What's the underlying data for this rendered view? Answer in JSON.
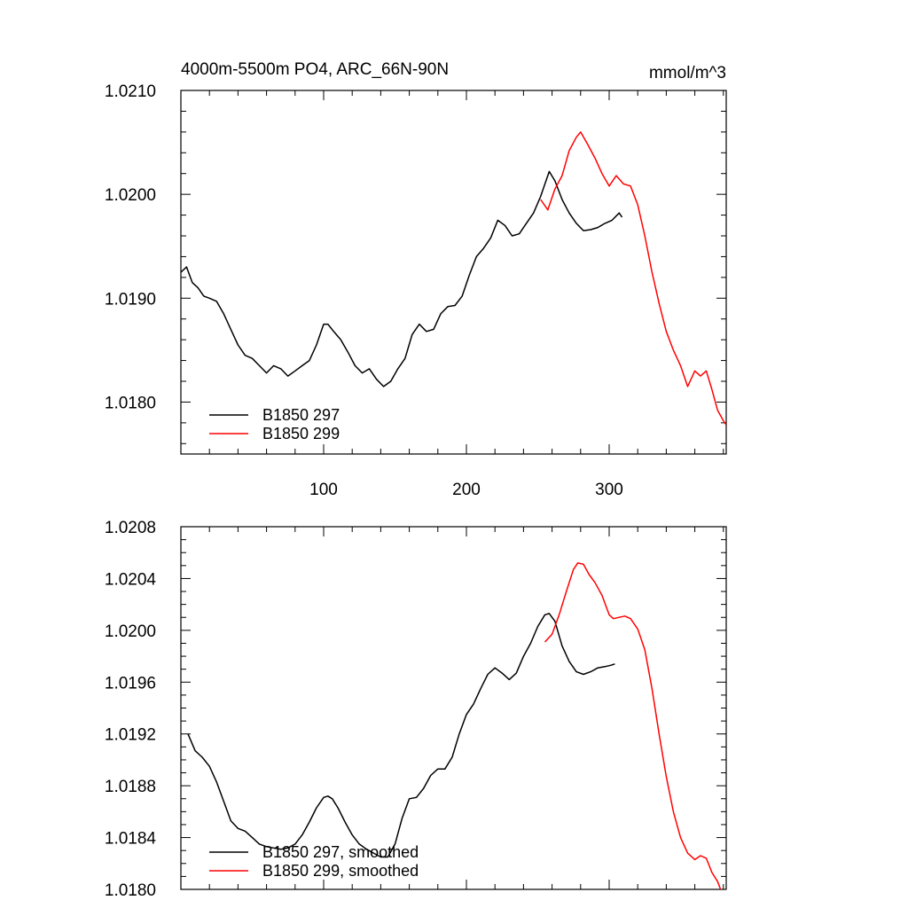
{
  "chart_data": [
    {
      "type": "line",
      "title": "4000m-5500m PO4, ARC_66N-90N",
      "units": "mmol/m^3",
      "xlabel": "",
      "ylabel": "",
      "xlim": [
        0,
        382
      ],
      "ylim": [
        1.0175,
        1.021
      ],
      "xticks": [
        100,
        200,
        300
      ],
      "xtick_labels": [
        "100",
        "200",
        "300"
      ],
      "yticks": [
        1.018,
        1.019,
        1.02,
        1.021
      ],
      "ytick_labels": [
        "1.0180",
        "1.0190",
        "1.0200",
        "1.0210"
      ],
      "legend": "bottom-left",
      "series": [
        {
          "name": "B1850 297",
          "color": "#000000",
          "x": [
            0,
            4,
            8,
            12,
            16,
            20,
            25,
            30,
            35,
            40,
            45,
            50,
            55,
            60,
            65,
            70,
            75,
            80,
            85,
            90,
            95,
            100,
            103,
            107,
            112,
            117,
            122,
            127,
            132,
            137,
            142,
            147,
            152,
            157,
            162,
            167,
            172,
            177,
            182,
            187,
            192,
            197,
            202,
            207,
            212,
            217,
            222,
            227,
            232,
            237,
            242,
            247,
            252,
            258,
            262,
            267,
            272,
            277,
            282,
            287,
            292,
            297,
            302,
            307,
            309
          ],
          "y": [
            1.01925,
            1.0193,
            1.01915,
            1.0191,
            1.01902,
            1.019,
            1.01897,
            1.01885,
            1.0187,
            1.01855,
            1.01845,
            1.01842,
            1.01835,
            1.01828,
            1.01835,
            1.01832,
            1.01825,
            1.0183,
            1.01835,
            1.0184,
            1.01855,
            1.01875,
            1.01875,
            1.01868,
            1.0186,
            1.01848,
            1.01835,
            1.01828,
            1.01832,
            1.01822,
            1.01815,
            1.0182,
            1.01832,
            1.01842,
            1.01865,
            1.01875,
            1.01868,
            1.0187,
            1.01885,
            1.01892,
            1.01893,
            1.01902,
            1.01922,
            1.0194,
            1.01948,
            1.01958,
            1.01975,
            1.0197,
            1.0196,
            1.01962,
            1.01972,
            1.01982,
            1.01998,
            1.02022,
            1.02013,
            1.01995,
            1.01982,
            1.01972,
            1.01965,
            1.01966,
            1.01968,
            1.01972,
            1.01975,
            1.01982,
            1.01978
          ]
        },
        {
          "name": "B1850 299",
          "color": "#ff0000",
          "x": [
            252,
            257,
            262,
            267,
            272,
            277,
            280,
            285,
            290,
            295,
            300,
            305,
            310,
            315,
            320,
            325,
            330,
            335,
            340,
            345,
            350,
            355,
            360,
            364,
            368,
            372,
            376,
            380,
            382
          ],
          "y": [
            1.01995,
            1.01985,
            1.02005,
            1.02018,
            1.02042,
            1.02055,
            1.0206,
            1.02048,
            1.02035,
            1.0202,
            1.02008,
            1.02018,
            1.0201,
            1.02008,
            1.0199,
            1.0196,
            1.01925,
            1.01895,
            1.01868,
            1.0185,
            1.01835,
            1.01815,
            1.0183,
            1.01825,
            1.0183,
            1.01812,
            1.01792,
            1.01782,
            1.01778
          ]
        }
      ]
    },
    {
      "type": "line",
      "title": "",
      "xlabel": "",
      "ylabel": "",
      "xlim": [
        0,
        382
      ],
      "ylim": [
        1.018,
        1.0208
      ],
      "xticks": [
        100,
        200,
        300
      ],
      "yticks": [
        1.018,
        1.0184,
        1.0188,
        1.0192,
        1.0196,
        1.02,
        1.0204,
        1.0208
      ],
      "ytick_labels": [
        "1.0180",
        "1.0184",
        "1.0188",
        "1.0192",
        "1.0196",
        "1.0200",
        "1.0204",
        "1.0208"
      ],
      "legend": "bottom-left",
      "series": [
        {
          "name": "B1850 297, smoothed",
          "color": "#000000",
          "x": [
            5,
            10,
            15,
            20,
            25,
            30,
            35,
            40,
            45,
            50,
            55,
            60,
            65,
            70,
            75,
            80,
            85,
            90,
            95,
            100,
            103,
            106,
            110,
            115,
            120,
            125,
            130,
            135,
            140,
            145,
            150,
            155,
            160,
            165,
            170,
            175,
            180,
            185,
            190,
            195,
            200,
            205,
            210,
            215,
            220,
            225,
            230,
            235,
            240,
            245,
            250,
            255,
            258,
            262,
            267,
            272,
            277,
            282,
            287,
            292,
            297,
            301,
            304
          ],
          "y": [
            1.0192,
            1.01907,
            1.01902,
            1.01895,
            1.01883,
            1.01868,
            1.01853,
            1.01847,
            1.01845,
            1.0184,
            1.01835,
            1.01833,
            1.01832,
            1.01831,
            1.01832,
            1.01835,
            1.01842,
            1.01852,
            1.01863,
            1.01871,
            1.01872,
            1.0187,
            1.01863,
            1.01852,
            1.01842,
            1.01835,
            1.01831,
            1.01828,
            1.01825,
            1.01825,
            1.01835,
            1.01855,
            1.0187,
            1.01871,
            1.01878,
            1.01888,
            1.01893,
            1.01893,
            1.01902,
            1.0192,
            1.01935,
            1.01943,
            1.01955,
            1.01966,
            1.01971,
            1.01967,
            1.01962,
            1.01967,
            1.0198,
            1.0199,
            1.02003,
            1.02012,
            1.02013,
            1.02007,
            1.01988,
            1.01976,
            1.01968,
            1.01966,
            1.01968,
            1.01971,
            1.01972,
            1.01973,
            1.01974
          ]
        },
        {
          "name": "B1850 299, smoothed",
          "color": "#ff0000",
          "x": [
            255,
            260,
            265,
            270,
            275,
            278,
            282,
            286,
            290,
            295,
            300,
            303,
            307,
            311,
            315,
            320,
            325,
            330,
            335,
            340,
            345,
            350,
            355,
            360,
            364,
            368,
            372,
            376,
            378
          ],
          "y": [
            1.01991,
            1.01997,
            1.02012,
            1.0203,
            1.02047,
            1.02052,
            1.02051,
            1.02043,
            1.02037,
            1.02027,
            1.02012,
            1.02009,
            1.0201,
            1.02011,
            1.02009,
            1.02001,
            1.01985,
            1.01955,
            1.0192,
            1.01887,
            1.0186,
            1.0184,
            1.01828,
            1.01823,
            1.01826,
            1.01824,
            1.01813,
            1.01806,
            1.018
          ]
        }
      ]
    }
  ]
}
